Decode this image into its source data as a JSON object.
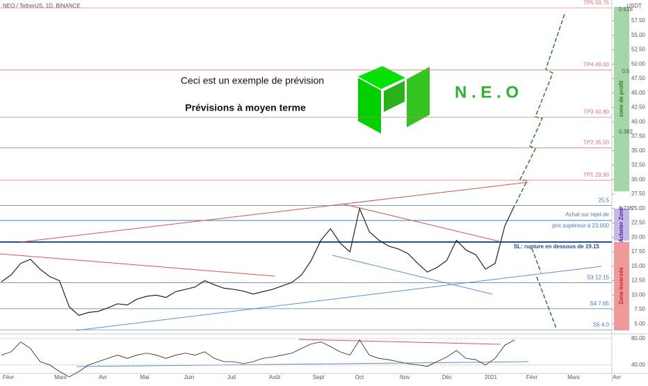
{
  "chart_data": {
    "type": "line",
    "title": "NEO / TetherUS, 1D, BINANCE",
    "annotations": {
      "headline": "Ceci est un exemple de prévision",
      "subheadline": "Prévisions à moyen terme",
      "brand": "N . E . O",
      "buy_1": "Achat sur rejet de",
      "buy_2": "prix supérieur à 23.000",
      "stop": "SL: rupture en dessous de 19.15"
    },
    "currency": "USDT",
    "zones": {
      "profit": "zone de profit",
      "buy": "Acheter Zone",
      "reverse": "Zone inversée"
    },
    "fib_labels": [
      "0.618",
      "0.5",
      "0.382",
      "0.236"
    ],
    "x_labels": [
      "Févr",
      "Mars",
      "Avr",
      "Mai",
      "Juin",
      "Juil",
      "Août",
      "Sept",
      "Oct",
      "Nov",
      "Déc",
      "2021",
      "Févr",
      "Mars",
      "Avr"
    ],
    "series": [
      {
        "name": "NEO",
        "color": "#222222",
        "values": [
          12.3,
          13.5,
          15.5,
          16.2,
          14.5,
          13.2,
          12.5,
          8.0,
          6.5,
          7.0,
          7.2,
          7.8,
          8.5,
          8.3,
          9.3,
          9.8,
          10.0,
          9.6,
          10.6,
          11.0,
          11.4,
          12.5,
          11.8,
          11.2,
          11.0,
          10.7,
          10.2,
          10.6,
          11.0,
          11.6,
          12.2,
          13.5,
          16.0,
          19.5,
          21.5,
          19.0,
          17.5,
          25.0,
          21.0,
          19.5,
          18.5,
          18.0,
          17.2,
          15.5,
          14.0,
          14.8,
          16.0,
          19.5,
          17.8,
          17.0,
          14.5,
          15.5,
          22.0,
          25.5
        ]
      }
    ],
    "ylim": [
      3.3,
      61.1
    ],
    "yticks": [
      {
        "value": 5,
        "label": "5.00"
      },
      {
        "value": 7.5,
        "label": "7.50"
      },
      {
        "value": 10,
        "label": "10.00"
      },
      {
        "value": 12.5,
        "label": "12.50"
      },
      {
        "value": 15,
        "label": "15.00"
      },
      {
        "value": 17.5,
        "label": "17.50"
      },
      {
        "value": 20,
        "label": "20.00"
      },
      {
        "value": 22.5,
        "label": "22.50"
      },
      {
        "value": 25,
        "label": "25.00"
      },
      {
        "value": 27.5,
        "label": "27.50"
      },
      {
        "value": 30,
        "label": "30.00"
      },
      {
        "value": 32.5,
        "label": "32.50"
      },
      {
        "value": 35,
        "label": "35.00"
      },
      {
        "value": 37.5,
        "label": "37.50"
      },
      {
        "value": 40,
        "label": "40.00"
      },
      {
        "value": 42.5,
        "label": "42.50"
      },
      {
        "value": 45,
        "label": "45.00"
      },
      {
        "value": 47.5,
        "label": "47.50"
      },
      {
        "value": 50,
        "label": "50.00"
      },
      {
        "value": 52.5,
        "label": "52.50"
      },
      {
        "value": 55,
        "label": "55.00"
      },
      {
        "value": 57.5,
        "label": "57.50"
      }
    ],
    "levels": [
      {
        "label": "TP5 59.75",
        "value": 59.75,
        "color": "#e57373"
      },
      {
        "label": "TP4 49.00",
        "value": 49,
        "color": "#e57373"
      },
      {
        "label": "TP3 40.80",
        "value": 40.8,
        "color": "#e57373"
      },
      {
        "label": "TP2 35.50",
        "value": 35.5,
        "color": "#e57373"
      },
      {
        "label": "TP1 29.90",
        "value": 29.9,
        "color": "#e57373"
      },
      {
        "label": "25.5",
        "value": 25.5,
        "color": "#4a78c2"
      },
      {
        "label": "S3 12.15",
        "value": 12.15,
        "color": "#4a78c2"
      },
      {
        "label": "S4 7.65",
        "value": 7.65,
        "color": "#4a78c2"
      },
      {
        "label": "S5 4.0",
        "value": 4.0,
        "color": "#4a78c2"
      }
    ],
    "rsi": {
      "values": [
        55,
        60,
        75,
        65,
        45,
        40,
        30,
        22,
        30,
        40,
        45,
        50,
        55,
        50,
        55,
        58,
        55,
        50,
        55,
        58,
        55,
        60,
        50,
        45,
        45,
        42,
        45,
        50,
        52,
        55,
        58,
        65,
        72,
        75,
        68,
        60,
        55,
        78,
        55,
        50,
        48,
        45,
        42,
        40,
        38,
        45,
        52,
        62,
        50,
        48,
        40,
        50,
        70,
        78
      ],
      "ylim": [
        29.2,
        84.1
      ],
      "yticks": [
        {
          "value": 80,
          "label": "80.00"
        },
        {
          "value": 40,
          "label": "40.00"
        }
      ]
    }
  }
}
